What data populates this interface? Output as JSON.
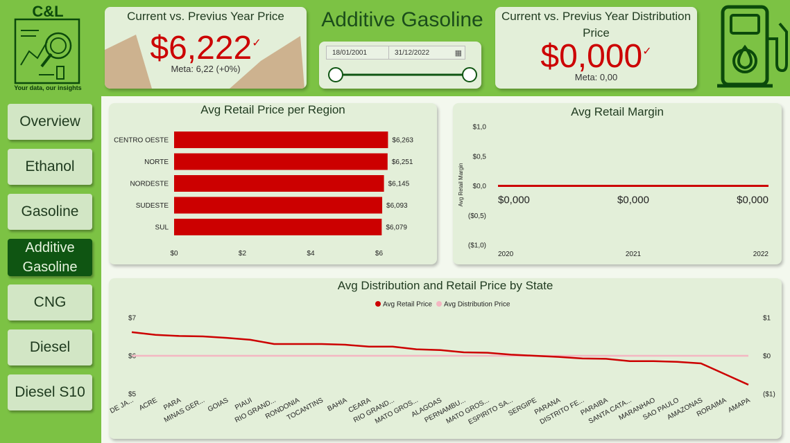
{
  "logo": {
    "title": "C&L",
    "tagline": "Your data, our insights"
  },
  "page_title": "Additive Gasoline",
  "kpi_price": {
    "title": "Current vs. Previus Year Price",
    "value": "$6,222",
    "meta": "Meta: 6,22 (+0%)"
  },
  "kpi_distribution": {
    "title": "Current vs. Previus Year Distribution Price",
    "value": "$0,000",
    "meta": "Meta: 0,00"
  },
  "date_filter": {
    "start": "18/01/2001",
    "end": "31/12/2022"
  },
  "nav": [
    "Overview",
    "Ethanol",
    "Gasoline",
    "Additive Gasoline",
    "CNG",
    "Diesel",
    "Diesel S10"
  ],
  "nav_active": "Additive Gasoline",
  "colors": {
    "accent_red": "#cc0000",
    "dist_pink": "#f4b6c2",
    "bg_green": "#7cc244",
    "dark_green": "#0f5512"
  },
  "chart_data": [
    {
      "type": "bar",
      "orientation": "horizontal",
      "title": "Avg Retail Price per Region",
      "categories": [
        "CENTRO OESTE",
        "NORTE",
        "NORDESTE",
        "SUDESTE",
        "SUL"
      ],
      "values": [
        6.263,
        6.251,
        6.145,
        6.093,
        6.079
      ],
      "data_labels": [
        "$6,263",
        "$6,251",
        "$6,145",
        "$6,093",
        "$6,079"
      ],
      "x_ticks": [
        "$0",
        "$2",
        "$4",
        "$6"
      ],
      "xlim": [
        0,
        6.6
      ]
    },
    {
      "type": "line",
      "title": "Avg Retail Margin",
      "ylabel": "Avg Retail Margin",
      "x": [
        "2020",
        "2021",
        "2022"
      ],
      "values": [
        0,
        0,
        0
      ],
      "data_labels": [
        "$0,000",
        "$0,000",
        "$0,000"
      ],
      "y_ticks": [
        "$1,0",
        "$0,5",
        "$0,0",
        "($0,5)",
        "($1,0)"
      ],
      "ylim": [
        -1,
        1
      ]
    },
    {
      "type": "line",
      "title": "Avg Distribution and Retail Price by State",
      "legend": "top",
      "categories": [
        "RIO DE JA...",
        "ACRE",
        "PARA",
        "MINAS GER...",
        "GOIAS",
        "PIAUI",
        "RIO GRAND...",
        "RONDONIA",
        "TOCANTINS",
        "BAHIA",
        "CEARA",
        "RIO GRAND...",
        "MATO GROS...",
        "ALAGOAS",
        "PERNAMBU...",
        "MATO GROS...",
        "ESPIRITO SA...",
        "SERGIPE",
        "PARANA",
        "DISTRITO FE...",
        "PARAIBA",
        "SANTA CATA...",
        "MARANHAO",
        "SAO PAULO",
        "AMAZONAS",
        "RORAIMA",
        "AMAPA"
      ],
      "series": [
        {
          "name": "Avg Retail Price",
          "axis": "left",
          "values": [
            6.62,
            6.55,
            6.52,
            6.51,
            6.47,
            6.42,
            6.31,
            6.31,
            6.31,
            6.29,
            6.24,
            6.24,
            6.17,
            6.15,
            6.09,
            6.08,
            6.03,
            6.0,
            5.97,
            5.93,
            5.92,
            5.86,
            5.86,
            5.84,
            5.8,
            5.52,
            5.24
          ]
        },
        {
          "name": "Avg Distribution Price",
          "axis": "right",
          "values": [
            0,
            0,
            0,
            0,
            0,
            0,
            0,
            0,
            0,
            0,
            0,
            0,
            0,
            0,
            0,
            0,
            0,
            0,
            0,
            0,
            0,
            0,
            0,
            0,
            0,
            0,
            0
          ]
        }
      ],
      "y_left_ticks": [
        "$7",
        "$6",
        "$5"
      ],
      "y_right_ticks": [
        "$1",
        "$0",
        "($1)"
      ],
      "ylim_left": [
        5,
        7
      ],
      "ylim_right": [
        -1,
        1
      ]
    }
  ]
}
